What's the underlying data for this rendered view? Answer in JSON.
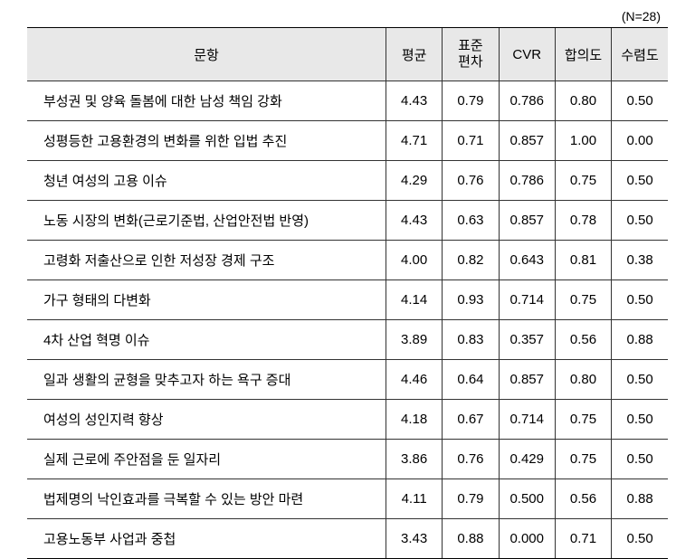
{
  "meta": {
    "n_label": "(N=28)"
  },
  "table": {
    "type": "table",
    "background_color": "#ffffff",
    "header_background": "#e8e8e8",
    "border_color": "#333333",
    "text_color": "#000000",
    "font_size": 15,
    "columns": [
      {
        "label": "문항",
        "align": "left"
      },
      {
        "label": "평균",
        "align": "center"
      },
      {
        "label_line1": "표준",
        "label_line2": "편차",
        "align": "center"
      },
      {
        "label": "CVR",
        "align": "center"
      },
      {
        "label": "합의도",
        "align": "center"
      },
      {
        "label": "수렴도",
        "align": "center"
      }
    ],
    "rows": [
      {
        "item": "부성권 및 양육 돌봄에 대한 남성 책임 강화",
        "mean": "4.43",
        "sd": "0.79",
        "cvr": "0.786",
        "agree": "0.80",
        "converge": "0.50"
      },
      {
        "item": "성평등한 고용환경의 변화를 위한 입법 추진",
        "mean": "4.71",
        "sd": "0.71",
        "cvr": "0.857",
        "agree": "1.00",
        "converge": "0.00"
      },
      {
        "item": "청년 여성의 고용 이슈",
        "mean": "4.29",
        "sd": "0.76",
        "cvr": "0.786",
        "agree": "0.75",
        "converge": "0.50"
      },
      {
        "item": "노동 시장의 변화(근로기준법, 산업안전법 반영)",
        "mean": "4.43",
        "sd": "0.63",
        "cvr": "0.857",
        "agree": "0.78",
        "converge": "0.50"
      },
      {
        "item": "고령화 저출산으로 인한 저성장 경제 구조",
        "mean": "4.00",
        "sd": "0.82",
        "cvr": "0.643",
        "agree": "0.81",
        "converge": "0.38"
      },
      {
        "item": "가구 형태의 다변화",
        "mean": "4.14",
        "sd": "0.93",
        "cvr": "0.714",
        "agree": "0.75",
        "converge": "0.50"
      },
      {
        "item": "4차 산업 혁명 이슈",
        "mean": "3.89",
        "sd": "0.83",
        "cvr": "0.357",
        "agree": "0.56",
        "converge": "0.88"
      },
      {
        "item": "일과 생활의 균형을 맞추고자 하는 욕구 증대",
        "mean": "4.46",
        "sd": "0.64",
        "cvr": "0.857",
        "agree": "0.80",
        "converge": "0.50"
      },
      {
        "item": "여성의 성인지력 향상",
        "mean": "4.18",
        "sd": "0.67",
        "cvr": "0.714",
        "agree": "0.75",
        "converge": "0.50"
      },
      {
        "item": "실제 근로에 주안점을 둔 일자리",
        "mean": "3.86",
        "sd": "0.76",
        "cvr": "0.429",
        "agree": "0.75",
        "converge": "0.50"
      },
      {
        "item": "법제명의 낙인효과를 극복할 수 있는 방안 마련",
        "mean": "4.11",
        "sd": "0.79",
        "cvr": "0.500",
        "agree": "0.56",
        "converge": "0.88"
      },
      {
        "item": "고용노동부 사업과 중첩",
        "mean": "3.43",
        "sd": "0.88",
        "cvr": "0.000",
        "agree": "0.71",
        "converge": "0.50"
      }
    ]
  }
}
